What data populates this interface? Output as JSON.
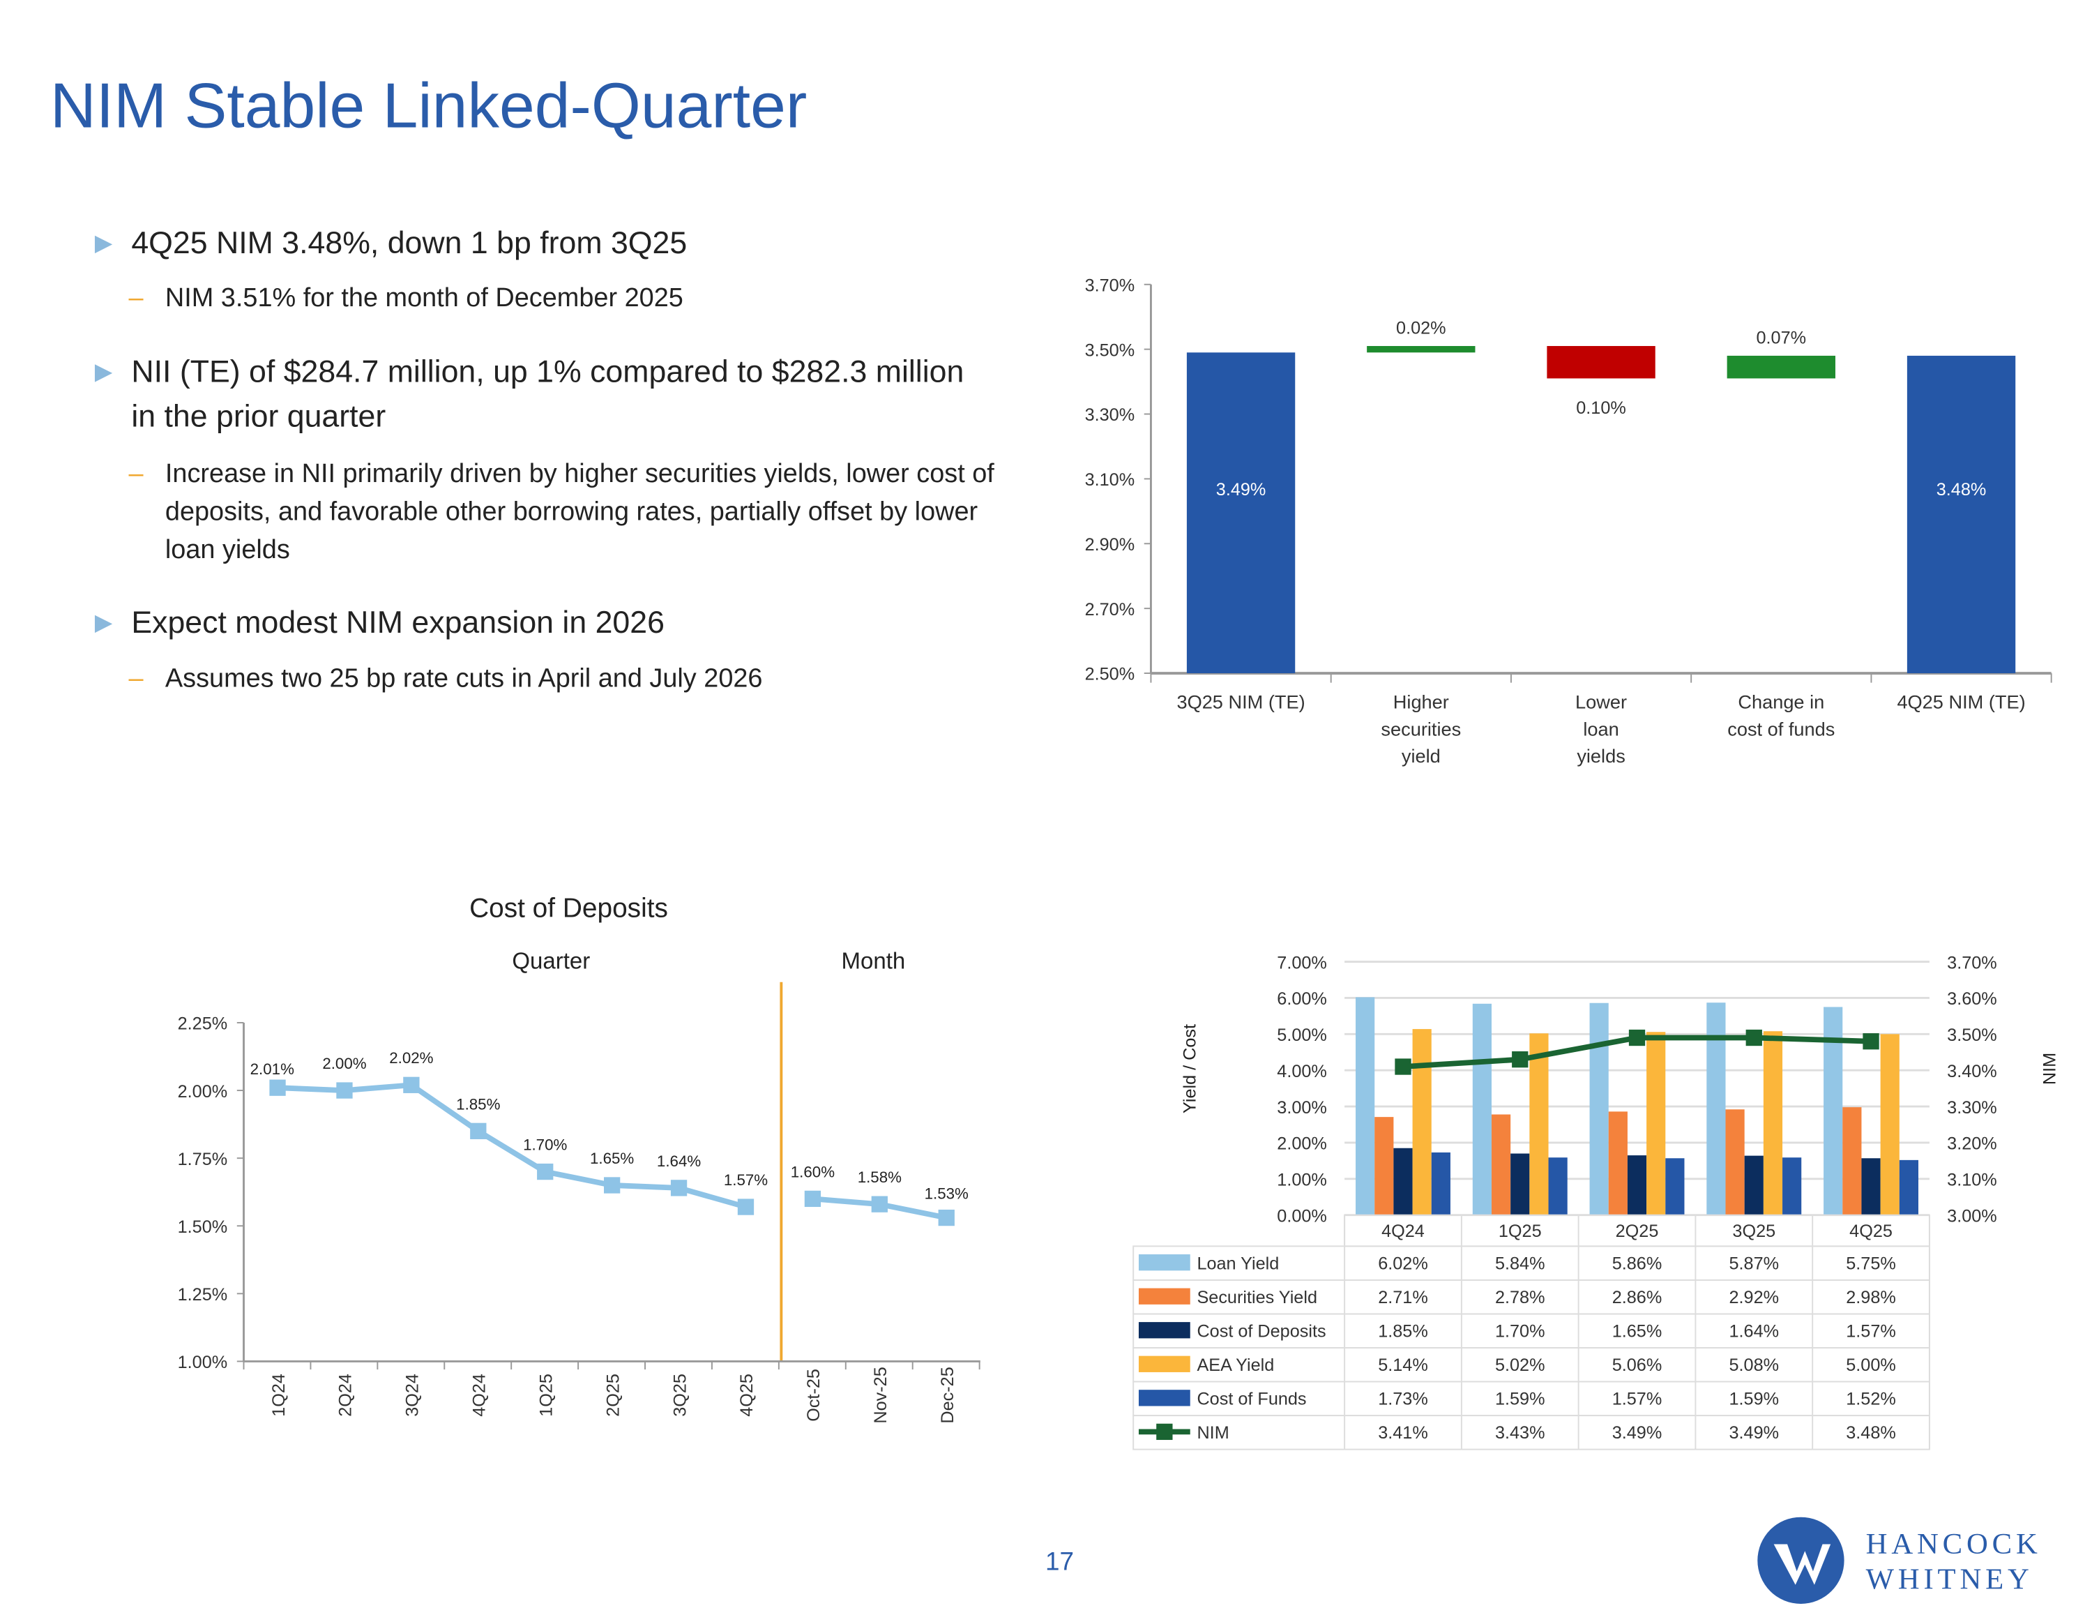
{
  "title": "NIM Stable Linked-Quarter",
  "bullets": [
    {
      "text": "4Q25 NIM 3.48%, down 1 bp from 3Q25",
      "subs": [
        "NIM 3.51% for the month of December 2025"
      ]
    },
    {
      "text": "NII (TE) of $284.7 million, up 1% compared to $282.3 million in the prior quarter",
      "subs": [
        "Increase in NII primarily driven by higher securities yields, lower cost of deposits, and favorable other borrowing rates, partially offset by lower loan yields"
      ]
    },
    {
      "text": "Expect modest NIM expansion in 2026",
      "subs": [
        "Assumes two 25 bp rate cuts in April and July 2026"
      ]
    }
  ],
  "page_number": "17",
  "logo": {
    "line1": "HANCOCK",
    "line2": "WHITNEY",
    "color": "#2a5caa"
  },
  "chart_data": [
    {
      "type": "bar",
      "subtype": "waterfall",
      "title": "",
      "categories": [
        "3Q25 NIM (TE)",
        "Higher securities yield",
        "Lower loan yields",
        "Change in cost of funds",
        "4Q25 NIM (TE)"
      ],
      "category_lines": [
        [
          "3Q25 NIM (TE)"
        ],
        [
          "Higher",
          "securities",
          "yield"
        ],
        [
          "Lower",
          "loan",
          "yields"
        ],
        [
          "Change in",
          "cost of funds"
        ],
        [
          "4Q25 NIM (TE)"
        ]
      ],
      "bars": [
        {
          "start": 2.5,
          "end": 3.49,
          "label": "3.49%",
          "color": "#2557a7"
        },
        {
          "start": 3.49,
          "end": 3.51,
          "label": "0.02%",
          "color": "#1e8c2e"
        },
        {
          "start": 3.51,
          "end": 3.41,
          "label": "0.10%",
          "color": "#c00000"
        },
        {
          "start": 3.41,
          "end": 3.48,
          "label": "0.07%",
          "color": "#1e8c2e"
        },
        {
          "start": 2.5,
          "end": 3.48,
          "label": "3.48%",
          "color": "#2557a7"
        }
      ],
      "ylim": [
        2.5,
        3.7
      ],
      "yticks": [
        "2.50%",
        "2.70%",
        "2.90%",
        "3.10%",
        "3.30%",
        "3.50%",
        "3.70%"
      ]
    },
    {
      "type": "line",
      "title": "Cost of Deposits",
      "section_labels": [
        "Quarter",
        "Month"
      ],
      "categories": [
        "1Q24",
        "2Q24",
        "3Q24",
        "4Q24",
        "1Q25",
        "2Q25",
        "3Q25",
        "4Q25",
        "Oct-25",
        "Nov-25",
        "Dec-25"
      ],
      "values": [
        2.01,
        2.0,
        2.02,
        1.85,
        1.7,
        1.65,
        1.64,
        1.57,
        1.6,
        1.58,
        1.53
      ],
      "labels": [
        "2.01%",
        "2.00%",
        "2.02%",
        "1.85%",
        "1.70%",
        "1.65%",
        "1.64%",
        "1.57%",
        "1.60%",
        "1.58%",
        "1.53%"
      ],
      "ylim": [
        1.0,
        2.25
      ],
      "yticks": [
        "1.00%",
        "1.25%",
        "1.50%",
        "1.75%",
        "2.00%",
        "2.25%"
      ],
      "color": "#8ec3e6",
      "divider_color": "#f0a830"
    },
    {
      "type": "bar",
      "subtype": "combo-with-table",
      "ylabel": "Yield / Cost",
      "y2label": "NIM",
      "categories": [
        "4Q24",
        "1Q25",
        "2Q25",
        "3Q25",
        "4Q25"
      ],
      "ylim": [
        0,
        7
      ],
      "yticks": [
        "0.00%",
        "1.00%",
        "2.00%",
        "3.00%",
        "4.00%",
        "5.00%",
        "6.00%",
        "7.00%"
      ],
      "y2lim": [
        3.0,
        3.7
      ],
      "y2ticks": [
        "3.00%",
        "3.10%",
        "3.20%",
        "3.30%",
        "3.40%",
        "3.50%",
        "3.60%",
        "3.70%"
      ],
      "series": [
        {
          "name": "Loan Yield",
          "kind": "bar",
          "axis": "left",
          "color": "#93c6e6",
          "values": [
            6.02,
            5.84,
            5.86,
            5.87,
            5.75
          ],
          "labels": [
            "6.02%",
            "5.84%",
            "5.86%",
            "5.87%",
            "5.75%"
          ]
        },
        {
          "name": "Securities Yield",
          "kind": "bar",
          "axis": "left",
          "color": "#f4823c",
          "values": [
            2.71,
            2.78,
            2.86,
            2.92,
            2.98
          ],
          "labels": [
            "2.71%",
            "2.78%",
            "2.86%",
            "2.92%",
            "2.98%"
          ]
        },
        {
          "name": "Cost of Deposits",
          "kind": "bar",
          "axis": "left",
          "color": "#0c2d5e",
          "values": [
            1.85,
            1.7,
            1.65,
            1.64,
            1.57
          ],
          "labels": [
            "1.85%",
            "1.70%",
            "1.65%",
            "1.64%",
            "1.57%"
          ]
        },
        {
          "name": "AEA Yield",
          "kind": "bar",
          "axis": "left",
          "color": "#fbb63b",
          "values": [
            5.14,
            5.02,
            5.06,
            5.08,
            5.0
          ],
          "labels": [
            "5.14%",
            "5.02%",
            "5.06%",
            "5.08%",
            "5.00%"
          ]
        },
        {
          "name": "Cost of Funds",
          "kind": "bar",
          "axis": "left",
          "color": "#2557a7",
          "values": [
            1.73,
            1.59,
            1.57,
            1.59,
            1.52
          ],
          "labels": [
            "1.73%",
            "1.59%",
            "1.57%",
            "1.59%",
            "1.52%"
          ]
        },
        {
          "name": "NIM",
          "kind": "line",
          "axis": "right",
          "color": "#1a6432",
          "values": [
            3.41,
            3.43,
            3.49,
            3.49,
            3.48
          ],
          "labels": [
            "3.41%",
            "3.43%",
            "3.49%",
            "3.49%",
            "3.48%"
          ]
        }
      ]
    }
  ]
}
